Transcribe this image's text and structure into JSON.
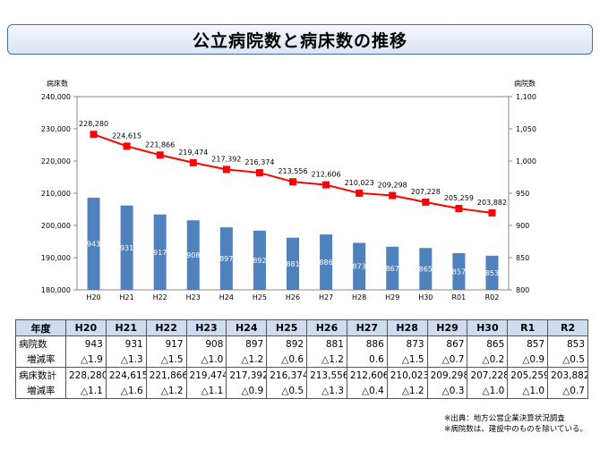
{
  "title": "公立病院数と病床数の推移",
  "chart_data": {
    "type": "bar+line",
    "categories": [
      "H20",
      "H21",
      "H22",
      "H23",
      "H24",
      "H25",
      "H26",
      "H27",
      "H28",
      "H29",
      "H30",
      "R01",
      "R02"
    ],
    "series": [
      {
        "name": "病院数",
        "type": "bar",
        "axis": "right",
        "values": [
          943,
          931,
          917,
          908,
          897,
          892,
          881,
          886,
          873,
          867,
          865,
          857,
          853
        ]
      },
      {
        "name": "病床数",
        "type": "line",
        "axis": "left",
        "values": [
          228280,
          224615,
          221866,
          219474,
          217392,
          216374,
          213556,
          212606,
          210023,
          209298,
          207228,
          205259,
          203882
        ]
      }
    ],
    "left_axis": {
      "label": "病床数",
      "min": 180000,
      "max": 240000,
      "ticks": [
        "180,000",
        "190,000",
        "200,000",
        "210,000",
        "220,000",
        "230,000",
        "240,000"
      ]
    },
    "right_axis": {
      "label": "病院数",
      "min": 800,
      "max": 1100,
      "ticks": [
        "800",
        "850",
        "900",
        "950",
        "1,000",
        "1,050",
        "1,100"
      ]
    },
    "bar_labels": [
      "943",
      "931",
      "917",
      "908",
      "897",
      "892",
      "881",
      "886",
      "873",
      "867",
      "865",
      "857",
      "853"
    ],
    "line_labels": [
      "228,280",
      "224,615",
      "221,866",
      "219,474",
      "217,392",
      "216,374",
      "213,556",
      "212,606",
      "210,023",
      "209,298",
      "207,228",
      "205,259",
      "203,882"
    ],
    "colors": {
      "bar": "#4f81bd",
      "line": "#ff0000",
      "marker": "#ff0000"
    }
  },
  "table": {
    "header_label": "年度",
    "years": [
      "H20",
      "H21",
      "H22",
      "H23",
      "H24",
      "H25",
      "H26",
      "H27",
      "H28",
      "H29",
      "H30",
      "R1",
      "R2"
    ],
    "rows": [
      {
        "label": "病院数",
        "values": [
          "943",
          "931",
          "917",
          "908",
          "897",
          "892",
          "881",
          "886",
          "873",
          "867",
          "865",
          "857",
          "853"
        ],
        "kind": "main"
      },
      {
        "label": "増減率",
        "values": [
          "△1.9",
          "△1.3",
          "△1.5",
          "△1.0",
          "△1.2",
          "△0.6",
          "△1.2",
          "0.6",
          "△1.5",
          "△0.7",
          "△0.2",
          "△0.9",
          "△0.5"
        ],
        "kind": "sub"
      },
      {
        "label": "病床数計",
        "values": [
          "228,280",
          "224,615",
          "221,866",
          "219,474",
          "217,392",
          "216,374",
          "213,556",
          "212,606",
          "210,023",
          "209,298",
          "207,228",
          "205,259",
          "203,882"
        ],
        "kind": "main"
      },
      {
        "label": "増減率",
        "values": [
          "△1.1",
          "△1.6",
          "△1.2",
          "△1.1",
          "△0.9",
          "△0.5",
          "△1.3",
          "△0.4",
          "△1.2",
          "△0.3",
          "△1.0",
          "△1.0",
          "△0.7"
        ],
        "kind": "sub"
      }
    ]
  },
  "notes": [
    "※出典：地方公営企業決算状況調査",
    "※病院数は、建設中のものを除いている。"
  ]
}
